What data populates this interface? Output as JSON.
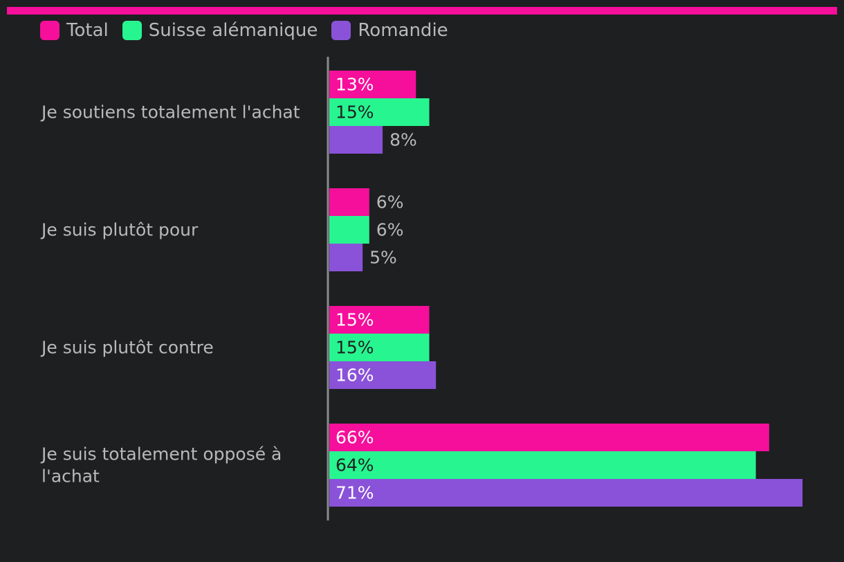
{
  "colors": {
    "background": "#1e1f21",
    "accent": "#f50f9b",
    "axis": "#8a8b8d",
    "text": "#b8b9bb"
  },
  "legend": [
    {
      "label": "Total",
      "color": "#f50f9b"
    },
    {
      "label": "Suisse alémanique",
      "color": "#27f58f"
    },
    {
      "label": "Romandie",
      "color": "#8a52d8"
    }
  ],
  "chart_data": {
    "type": "bar",
    "orientation": "horizontal",
    "categories": [
      [
        "Je soutiens totalement l'achat"
      ],
      [
        "Je suis plutôt pour"
      ],
      [
        "Je suis plutôt contre"
      ],
      [
        "Je suis totalement opposé à",
        "l'achat"
      ]
    ],
    "series": [
      {
        "name": "Total",
        "color": "#f50f9b",
        "values": [
          13,
          6,
          15,
          66
        ],
        "labels": [
          "13%",
          "6%",
          "15%",
          "66%"
        ],
        "label_color_inside": "#ffffff"
      },
      {
        "name": "Suisse alémanique",
        "color": "#27f58f",
        "values": [
          15,
          6,
          15,
          64
        ],
        "labels": [
          "15%",
          "6%",
          "15%",
          "64%"
        ],
        "label_color_inside": "#1e1f21"
      },
      {
        "name": "Romandie",
        "color": "#8a52d8",
        "values": [
          8,
          5,
          16,
          71
        ],
        "labels": [
          "8%",
          "5%",
          "16%",
          "71%"
        ],
        "label_color_inside": "#ffffff"
      }
    ],
    "value_unit": "%",
    "xlim": [
      0,
      71
    ],
    "grid": false,
    "legend_position": "top-left",
    "title": "",
    "xlabel": "",
    "ylabel": ""
  }
}
